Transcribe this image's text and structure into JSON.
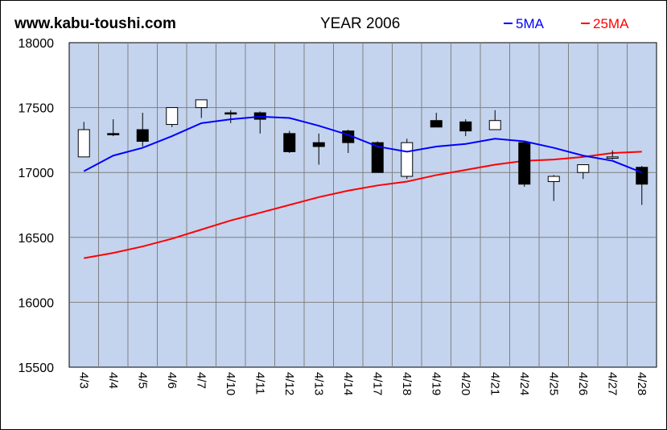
{
  "header": {
    "site": "www.kabu-toushi.com",
    "title": "YEAR 2006"
  },
  "legend": [
    {
      "label": "5MA",
      "color": "#0000ff"
    },
    {
      "label": "25MA",
      "color": "#ff0000"
    }
  ],
  "chart_data": {
    "type": "candlestick",
    "categories": [
      "4/3",
      "4/4",
      "4/5",
      "4/6",
      "4/7",
      "4/10",
      "4/11",
      "4/12",
      "4/13",
      "4/14",
      "4/17",
      "4/18",
      "4/19",
      "4/20",
      "4/21",
      "4/24",
      "4/25",
      "4/26",
      "4/27",
      "4/28"
    ],
    "ylim": [
      15500,
      18000
    ],
    "yticks": [
      18000,
      17500,
      17000,
      16500,
      16000,
      15500
    ],
    "background": "#c4d4ee",
    "grid": true,
    "candles": [
      {
        "open": 17120,
        "high": 17390,
        "low": 17120,
        "close": 17330
      },
      {
        "open": 17300,
        "high": 17410,
        "low": 17280,
        "close": 17290
      },
      {
        "open": 17330,
        "high": 17460,
        "low": 17200,
        "close": 17240
      },
      {
        "open": 17370,
        "high": 17500,
        "low": 17350,
        "close": 17500
      },
      {
        "open": 17500,
        "high": 17560,
        "low": 17420,
        "close": 17560
      },
      {
        "open": 17460,
        "high": 17480,
        "low": 17380,
        "close": 17450
      },
      {
        "open": 17460,
        "high": 17470,
        "low": 17300,
        "close": 17410
      },
      {
        "open": 17300,
        "high": 17320,
        "low": 17150,
        "close": 17160
      },
      {
        "open": 17230,
        "high": 17300,
        "low": 17060,
        "close": 17200
      },
      {
        "open": 17320,
        "high": 17330,
        "low": 17150,
        "close": 17230
      },
      {
        "open": 17230,
        "high": 17240,
        "low": 17000,
        "close": 17000
      },
      {
        "open": 16970,
        "high": 17260,
        "low": 16950,
        "close": 17230
      },
      {
        "open": 17400,
        "high": 17460,
        "low": 17350,
        "close": 17350
      },
      {
        "open": 17390,
        "high": 17410,
        "low": 17280,
        "close": 17320
      },
      {
        "open": 17330,
        "high": 17480,
        "low": 17330,
        "close": 17400
      },
      {
        "open": 17230,
        "high": 17230,
        "low": 16890,
        "close": 16910
      },
      {
        "open": 16930,
        "high": 16980,
        "low": 16780,
        "close": 16970
      },
      {
        "open": 17000,
        "high": 17060,
        "low": 16950,
        "close": 17060
      },
      {
        "open": 17110,
        "high": 17170,
        "low": 17100,
        "close": 17120
      },
      {
        "open": 17040,
        "high": 17050,
        "low": 16750,
        "close": 16910
      }
    ],
    "series": [
      {
        "name": "5MA",
        "color": "#0000ff",
        "values": [
          17010,
          17130,
          17190,
          17280,
          17380,
          17410,
          17430,
          17420,
          17360,
          17290,
          17200,
          17160,
          17200,
          17220,
          17260,
          17240,
          17190,
          17130,
          17090,
          17000
        ]
      },
      {
        "name": "25MA",
        "color": "#ff0000",
        "values": [
          16340,
          16380,
          16430,
          16490,
          16560,
          16630,
          16690,
          16750,
          16810,
          16860,
          16900,
          16930,
          16980,
          17020,
          17060,
          17090,
          17100,
          17120,
          17150,
          17160
        ]
      }
    ]
  }
}
